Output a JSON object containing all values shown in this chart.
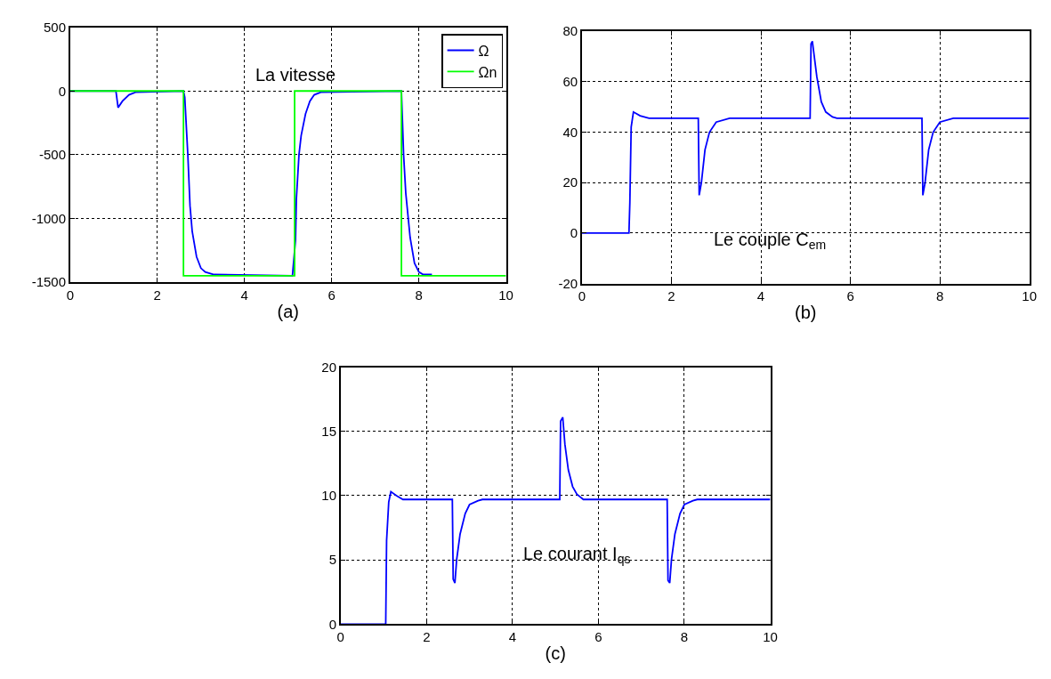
{
  "chart_data": [
    {
      "type": "line",
      "xlabel": "(a)",
      "annotations": [
        "La vitesse"
      ],
      "xlim": [
        0,
        10
      ],
      "xticks": [
        0,
        2,
        4,
        6,
        8,
        10
      ],
      "ylim": [
        -1500,
        500
      ],
      "yticks": [
        -1500,
        -1000,
        -500,
        0,
        500
      ],
      "grid": true,
      "legend": "top right",
      "marker": "none",
      "line_style": "solid",
      "series": [
        {
          "name": "Ω",
          "color": "#0000ff",
          "x": [
            0,
            1.05,
            1.1,
            1.2,
            1.35,
            1.5,
            2.6,
            2.63,
            2.7,
            2.75,
            2.8,
            2.9,
            3.0,
            3.1,
            3.3,
            5.1,
            5.17,
            5.19,
            5.25,
            5.3,
            5.4,
            5.5,
            5.6,
            5.75,
            7.6,
            7.62,
            7.65,
            7.7,
            7.8,
            7.9,
            8.0,
            8.1,
            8.3
          ],
          "values": [
            0,
            0,
            -130,
            -80,
            -30,
            -10,
            0,
            -50,
            -500,
            -900,
            -1100,
            -1300,
            -1390,
            -1420,
            -1440,
            -1450,
            -1170,
            -850,
            -500,
            -350,
            -180,
            -80,
            -30,
            -10,
            0,
            -200,
            -500,
            -800,
            -1150,
            -1350,
            -1420,
            -1440,
            -1440
          ]
        },
        {
          "name": "Ωn",
          "color": "#00ff00",
          "x": [
            0,
            2.6,
            2.6,
            5.15,
            5.15,
            7.6,
            7.6,
            10
          ],
          "values": [
            0,
            0,
            -1450,
            -1450,
            0,
            0,
            -1450,
            -1450
          ]
        }
      ]
    },
    {
      "type": "line",
      "xlabel": "(b)",
      "annotations": [
        "Le couple C$_{em}$"
      ],
      "xlim": [
        0,
        10
      ],
      "xticks": [
        0,
        2,
        4,
        6,
        8,
        10
      ],
      "ylim": [
        -20,
        80
      ],
      "yticks": [
        -20,
        0,
        20,
        40,
        60,
        80
      ],
      "grid": true,
      "marker": "none",
      "line_style": "solid",
      "series": [
        {
          "color": "#0000ff",
          "x": [
            0,
            1.05,
            1.07,
            1.1,
            1.15,
            1.3,
            1.5,
            2.6,
            2.62,
            2.67,
            2.75,
            2.85,
            3.0,
            3.3,
            5.1,
            5.12,
            5.15,
            5.25,
            5.35,
            5.45,
            5.6,
            5.7,
            7.6,
            7.62,
            7.67,
            7.75,
            7.85,
            8.0,
            8.3,
            10
          ],
          "values": [
            0,
            0,
            12,
            42,
            48,
            46.5,
            45.5,
            45.5,
            15,
            20,
            33,
            40,
            44,
            45.5,
            45.5,
            75,
            76,
            62,
            52,
            48,
            46,
            45.5,
            45.5,
            15,
            20,
            33,
            40,
            44,
            45.5,
            45.5
          ]
        }
      ]
    },
    {
      "type": "line",
      "xlabel": "(c)",
      "annotations": [
        "Le courant I$_{qs}$"
      ],
      "xlim": [
        0,
        10
      ],
      "xticks": [
        0,
        2,
        4,
        6,
        8,
        10
      ],
      "ylim": [
        0,
        20
      ],
      "yticks": [
        0,
        5,
        10,
        15,
        20
      ],
      "grid": true,
      "marker": "none",
      "line_style": "solid",
      "series": [
        {
          "color": "#0000ff",
          "x": [
            0,
            1.05,
            1.07,
            1.12,
            1.17,
            1.3,
            1.45,
            2.6,
            2.62,
            2.66,
            2.7,
            2.78,
            2.9,
            3.0,
            3.2,
            3.3,
            5.1,
            5.12,
            5.17,
            5.22,
            5.3,
            5.4,
            5.5,
            5.65,
            7.6,
            7.62,
            7.66,
            7.7,
            7.78,
            7.9,
            8.0,
            8.2,
            8.3,
            10
          ],
          "values": [
            0,
            0,
            6.5,
            9.5,
            10.3,
            10,
            9.7,
            9.7,
            3.5,
            3.2,
            5,
            7,
            8.6,
            9.3,
            9.6,
            9.7,
            9.7,
            15.8,
            16.1,
            14,
            12,
            10.7,
            10.1,
            9.7,
            9.7,
            3.4,
            3.2,
            5,
            7,
            8.6,
            9.3,
            9.6,
            9.7,
            9.7
          ]
        }
      ]
    }
  ]
}
